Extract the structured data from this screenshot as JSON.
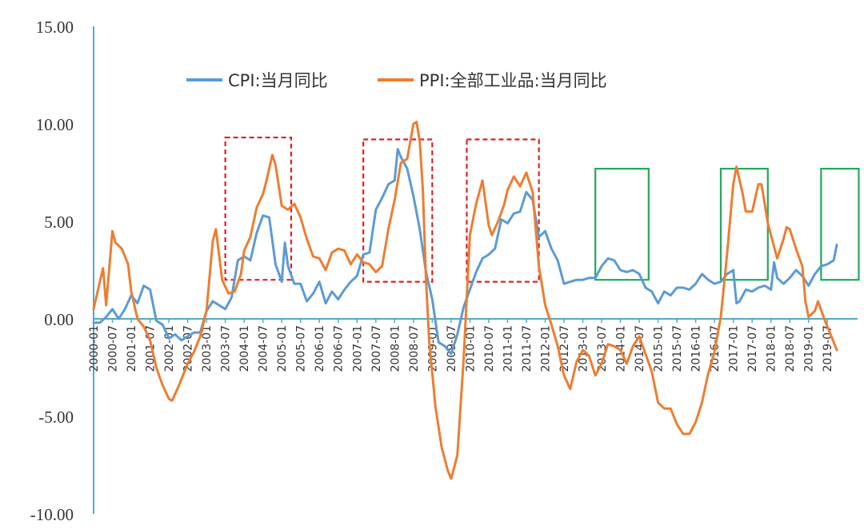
{
  "chart_data": {
    "type": "line",
    "ylim": [
      -10,
      15
    ],
    "yticks": [
      "15.00",
      "10.00",
      "5.00",
      "0.00",
      "-5.00",
      "-10.00"
    ],
    "ytick_values": [
      15,
      10,
      5,
      0,
      -5,
      -10
    ],
    "xticks": [
      "2000-01",
      "2000-07",
      "2001-01",
      "2001-07",
      "2002-01",
      "2002-07",
      "2003-01",
      "2003-07",
      "2004-01",
      "2004-07",
      "2005-01",
      "2005-07",
      "2006-01",
      "2006-07",
      "2007-01",
      "2007-07",
      "2008-01",
      "2008-07",
      "2009-01",
      "2009-07",
      "2010-01",
      "2010-07",
      "2011-01",
      "2011-07",
      "2012-01",
      "2012-07",
      "2013-01",
      "2013-07",
      "2014-01",
      "2014-07",
      "2015-01",
      "2015-07",
      "2016-01",
      "2016-07",
      "2017-01",
      "2017-07",
      "2018-01",
      "2018-07",
      "2019-01",
      "2019-07"
    ],
    "legend_placement": "top-center",
    "grid": false,
    "series": [
      {
        "name": "CPI:当月同比",
        "color": "#5b9bd5",
        "points": [
          [
            "2000-01",
            -0.2
          ],
          [
            "2000-03",
            -0.2
          ],
          [
            "2000-05",
            0.1
          ],
          [
            "2000-07",
            0.5
          ],
          [
            "2000-09",
            0.0
          ],
          [
            "2000-11",
            0.5
          ],
          [
            "2001-01",
            1.2
          ],
          [
            "2001-03",
            0.8
          ],
          [
            "2001-05",
            1.7
          ],
          [
            "2001-07",
            1.5
          ],
          [
            "2001-09",
            -0.1
          ],
          [
            "2001-11",
            -0.3
          ],
          [
            "2002-01",
            -1.0
          ],
          [
            "2002-03",
            -0.8
          ],
          [
            "2002-05",
            -1.1
          ],
          [
            "2002-07",
            -0.9
          ],
          [
            "2002-09",
            -0.7
          ],
          [
            "2002-11",
            -0.7
          ],
          [
            "2003-01",
            0.4
          ],
          [
            "2003-03",
            0.9
          ],
          [
            "2003-05",
            0.7
          ],
          [
            "2003-07",
            0.5
          ],
          [
            "2003-09",
            1.1
          ],
          [
            "2003-11",
            3.0
          ],
          [
            "2004-01",
            3.2
          ],
          [
            "2004-03",
            3.0
          ],
          [
            "2004-05",
            4.4
          ],
          [
            "2004-07",
            5.3
          ],
          [
            "2004-09",
            5.2
          ],
          [
            "2004-11",
            2.8
          ],
          [
            "2005-01",
            1.9
          ],
          [
            "2005-02",
            3.9
          ],
          [
            "2005-03",
            2.7
          ],
          [
            "2005-05",
            1.8
          ],
          [
            "2005-07",
            1.8
          ],
          [
            "2005-09",
            0.9
          ],
          [
            "2005-11",
            1.3
          ],
          [
            "2006-01",
            1.9
          ],
          [
            "2006-03",
            0.8
          ],
          [
            "2006-05",
            1.4
          ],
          [
            "2006-07",
            1.0
          ],
          [
            "2006-09",
            1.5
          ],
          [
            "2006-11",
            1.9
          ],
          [
            "2007-01",
            2.2
          ],
          [
            "2007-03",
            3.3
          ],
          [
            "2007-05",
            3.4
          ],
          [
            "2007-07",
            5.6
          ],
          [
            "2007-09",
            6.2
          ],
          [
            "2007-11",
            6.9
          ],
          [
            "2008-01",
            7.1
          ],
          [
            "2008-02",
            8.7
          ],
          [
            "2008-03",
            8.3
          ],
          [
            "2008-05",
            7.7
          ],
          [
            "2008-07",
            6.3
          ],
          [
            "2008-09",
            4.6
          ],
          [
            "2008-11",
            2.4
          ],
          [
            "2009-01",
            1.0
          ],
          [
            "2009-03",
            -1.2
          ],
          [
            "2009-05",
            -1.4
          ],
          [
            "2009-07",
            -1.8
          ],
          [
            "2009-09",
            -0.8
          ],
          [
            "2009-11",
            0.6
          ],
          [
            "2010-01",
            1.5
          ],
          [
            "2010-03",
            2.4
          ],
          [
            "2010-05",
            3.1
          ],
          [
            "2010-07",
            3.3
          ],
          [
            "2010-09",
            3.6
          ],
          [
            "2010-11",
            5.1
          ],
          [
            "2011-01",
            4.9
          ],
          [
            "2011-03",
            5.4
          ],
          [
            "2011-05",
            5.5
          ],
          [
            "2011-07",
            6.5
          ],
          [
            "2011-09",
            6.1
          ],
          [
            "2011-11",
            4.2
          ],
          [
            "2012-01",
            4.5
          ],
          [
            "2012-03",
            3.6
          ],
          [
            "2012-05",
            3.0
          ],
          [
            "2012-07",
            1.8
          ],
          [
            "2012-09",
            1.9
          ],
          [
            "2012-11",
            2.0
          ],
          [
            "2013-01",
            2.0
          ],
          [
            "2013-03",
            2.1
          ],
          [
            "2013-05",
            2.1
          ],
          [
            "2013-07",
            2.7
          ],
          [
            "2013-09",
            3.1
          ],
          [
            "2013-11",
            3.0
          ],
          [
            "2014-01",
            2.5
          ],
          [
            "2014-03",
            2.4
          ],
          [
            "2014-05",
            2.5
          ],
          [
            "2014-07",
            2.3
          ],
          [
            "2014-09",
            1.6
          ],
          [
            "2014-11",
            1.4
          ],
          [
            "2015-01",
            0.8
          ],
          [
            "2015-03",
            1.4
          ],
          [
            "2015-05",
            1.2
          ],
          [
            "2015-07",
            1.6
          ],
          [
            "2015-09",
            1.6
          ],
          [
            "2015-11",
            1.5
          ],
          [
            "2016-01",
            1.8
          ],
          [
            "2016-03",
            2.3
          ],
          [
            "2016-05",
            2.0
          ],
          [
            "2016-07",
            1.8
          ],
          [
            "2016-09",
            1.9
          ],
          [
            "2016-11",
            2.3
          ],
          [
            "2017-01",
            2.5
          ],
          [
            "2017-02",
            0.8
          ],
          [
            "2017-03",
            0.9
          ],
          [
            "2017-05",
            1.5
          ],
          [
            "2017-07",
            1.4
          ],
          [
            "2017-09",
            1.6
          ],
          [
            "2017-11",
            1.7
          ],
          [
            "2018-01",
            1.5
          ],
          [
            "2018-02",
            2.9
          ],
          [
            "2018-03",
            2.1
          ],
          [
            "2018-05",
            1.8
          ],
          [
            "2018-07",
            2.1
          ],
          [
            "2018-09",
            2.5
          ],
          [
            "2018-11",
            2.2
          ],
          [
            "2019-01",
            1.7
          ],
          [
            "2019-03",
            2.3
          ],
          [
            "2019-05",
            2.7
          ],
          [
            "2019-07",
            2.8
          ],
          [
            "2019-09",
            3.0
          ],
          [
            "2019-10",
            3.8
          ]
        ]
      },
      {
        "name": "PPI:全部工业品:当月同比",
        "color": "#ed7d31",
        "points": [
          [
            "2000-01",
            0.5
          ],
          [
            "2000-03",
            1.9
          ],
          [
            "2000-04",
            2.6
          ],
          [
            "2000-05",
            0.7
          ],
          [
            "2000-07",
            4.5
          ],
          [
            "2000-08",
            3.9
          ],
          [
            "2000-10",
            3.6
          ],
          [
            "2000-12",
            2.8
          ],
          [
            "2001-01",
            1.4
          ],
          [
            "2001-03",
            0.0
          ],
          [
            "2001-05",
            -0.4
          ],
          [
            "2001-07",
            -1.1
          ],
          [
            "2001-09",
            -2.5
          ],
          [
            "2001-11",
            -3.4
          ],
          [
            "2002-01",
            -4.1
          ],
          [
            "2002-02",
            -4.2
          ],
          [
            "2002-04",
            -3.5
          ],
          [
            "2002-07",
            -2.3
          ],
          [
            "2002-09",
            -1.7
          ],
          [
            "2002-11",
            -0.9
          ],
          [
            "2003-01",
            0.4
          ],
          [
            "2003-03",
            4.0
          ],
          [
            "2003-04",
            4.6
          ],
          [
            "2003-06",
            2.0
          ],
          [
            "2003-08",
            1.3
          ],
          [
            "2003-10",
            1.4
          ],
          [
            "2003-12",
            2.3
          ],
          [
            "2004-01",
            3.5
          ],
          [
            "2004-03",
            4.2
          ],
          [
            "2004-05",
            5.7
          ],
          [
            "2004-07",
            6.4
          ],
          [
            "2004-08",
            7.0
          ],
          [
            "2004-10",
            8.4
          ],
          [
            "2004-11",
            7.9
          ],
          [
            "2005-01",
            5.8
          ],
          [
            "2005-03",
            5.6
          ],
          [
            "2005-05",
            5.9
          ],
          [
            "2005-07",
            5.2
          ],
          [
            "2005-09",
            4.1
          ],
          [
            "2005-11",
            3.2
          ],
          [
            "2006-01",
            3.1
          ],
          [
            "2006-03",
            2.5
          ],
          [
            "2006-05",
            3.4
          ],
          [
            "2006-07",
            3.6
          ],
          [
            "2006-09",
            3.5
          ],
          [
            "2006-11",
            2.8
          ],
          [
            "2007-01",
            3.3
          ],
          [
            "2007-03",
            2.9
          ],
          [
            "2007-05",
            2.8
          ],
          [
            "2007-07",
            2.4
          ],
          [
            "2007-09",
            2.7
          ],
          [
            "2007-11",
            4.6
          ],
          [
            "2008-01",
            6.1
          ],
          [
            "2008-03",
            8.0
          ],
          [
            "2008-05",
            8.2
          ],
          [
            "2008-07",
            10.0
          ],
          [
            "2008-08",
            10.1
          ],
          [
            "2008-09",
            9.1
          ],
          [
            "2008-10",
            6.6
          ],
          [
            "2008-11",
            2.0
          ],
          [
            "2008-12",
            -1.1
          ],
          [
            "2009-02",
            -4.5
          ],
          [
            "2009-04",
            -6.6
          ],
          [
            "2009-06",
            -7.8
          ],
          [
            "2009-07",
            -8.2
          ],
          [
            "2009-09",
            -7.0
          ],
          [
            "2009-11",
            -2.1
          ],
          [
            "2010-01",
            4.3
          ],
          [
            "2010-03",
            5.9
          ],
          [
            "2010-05",
            7.1
          ],
          [
            "2010-07",
            4.8
          ],
          [
            "2010-08",
            4.3
          ],
          [
            "2010-10",
            5.0
          ],
          [
            "2010-12",
            5.9
          ],
          [
            "2011-01",
            6.6
          ],
          [
            "2011-03",
            7.3
          ],
          [
            "2011-05",
            6.8
          ],
          [
            "2011-07",
            7.5
          ],
          [
            "2011-09",
            6.5
          ],
          [
            "2011-11",
            2.7
          ],
          [
            "2012-01",
            0.7
          ],
          [
            "2012-03",
            -0.3
          ],
          [
            "2012-05",
            -1.4
          ],
          [
            "2012-07",
            -2.9
          ],
          [
            "2012-09",
            -3.6
          ],
          [
            "2012-11",
            -2.2
          ],
          [
            "2013-01",
            -1.6
          ],
          [
            "2013-03",
            -1.9
          ],
          [
            "2013-05",
            -2.9
          ],
          [
            "2013-07",
            -2.3
          ],
          [
            "2013-09",
            -1.3
          ],
          [
            "2013-11",
            -1.4
          ],
          [
            "2014-01",
            -1.6
          ],
          [
            "2014-03",
            -2.3
          ],
          [
            "2014-05",
            -1.4
          ],
          [
            "2014-07",
            -0.9
          ],
          [
            "2014-09",
            -1.8
          ],
          [
            "2014-11",
            -2.7
          ],
          [
            "2015-01",
            -4.3
          ],
          [
            "2015-03",
            -4.6
          ],
          [
            "2015-05",
            -4.6
          ],
          [
            "2015-07",
            -5.4
          ],
          [
            "2015-09",
            -5.9
          ],
          [
            "2015-11",
            -5.9
          ],
          [
            "2016-01",
            -5.3
          ],
          [
            "2016-03",
            -4.3
          ],
          [
            "2016-05",
            -2.8
          ],
          [
            "2016-07",
            -1.7
          ],
          [
            "2016-09",
            0.1
          ],
          [
            "2016-11",
            3.3
          ],
          [
            "2017-01",
            6.9
          ],
          [
            "2017-02",
            7.8
          ],
          [
            "2017-04",
            6.4
          ],
          [
            "2017-05",
            5.5
          ],
          [
            "2017-07",
            5.5
          ],
          [
            "2017-09",
            6.9
          ],
          [
            "2017-10",
            6.9
          ],
          [
            "2017-12",
            4.9
          ],
          [
            "2018-02",
            3.7
          ],
          [
            "2018-03",
            3.1
          ],
          [
            "2018-05",
            4.1
          ],
          [
            "2018-06",
            4.7
          ],
          [
            "2018-07",
            4.6
          ],
          [
            "2018-09",
            3.6
          ],
          [
            "2018-11",
            2.7
          ],
          [
            "2018-12",
            0.9
          ],
          [
            "2019-01",
            0.1
          ],
          [
            "2019-03",
            0.4
          ],
          [
            "2019-04",
            0.9
          ],
          [
            "2019-06",
            0.0
          ],
          [
            "2019-08",
            -0.8
          ],
          [
            "2019-10",
            -1.6
          ]
        ]
      }
    ],
    "highlight_boxes": [
      {
        "style": "red-dashed",
        "x_start": "2003-07",
        "x_end": "2005-04",
        "y_low": 2.0,
        "y_high": 9.3
      },
      {
        "style": "red-dashed",
        "x_start": "2007-03",
        "x_end": "2009-01",
        "y_low": 1.9,
        "y_high": 9.2
      },
      {
        "style": "red-dashed",
        "x_start": "2009-12",
        "x_end": "2011-11",
        "y_low": 1.9,
        "y_high": 9.2
      },
      {
        "style": "green-solid",
        "x_start": "2013-05",
        "x_end": "2014-10",
        "y_low": 2.0,
        "y_high": 7.7
      },
      {
        "style": "green-solid",
        "x_start": "2016-09",
        "x_end": "2017-12",
        "y_low": 2.0,
        "y_high": 7.7
      },
      {
        "style": "green-solid",
        "x_start": "2019-05",
        "x_end": "2020-05",
        "y_low": 2.0,
        "y_high": 7.7
      }
    ],
    "colors": {
      "axis": "#4bacc6",
      "red_box": "#e02020",
      "green_box": "#22a85a",
      "text": "#333333"
    }
  }
}
